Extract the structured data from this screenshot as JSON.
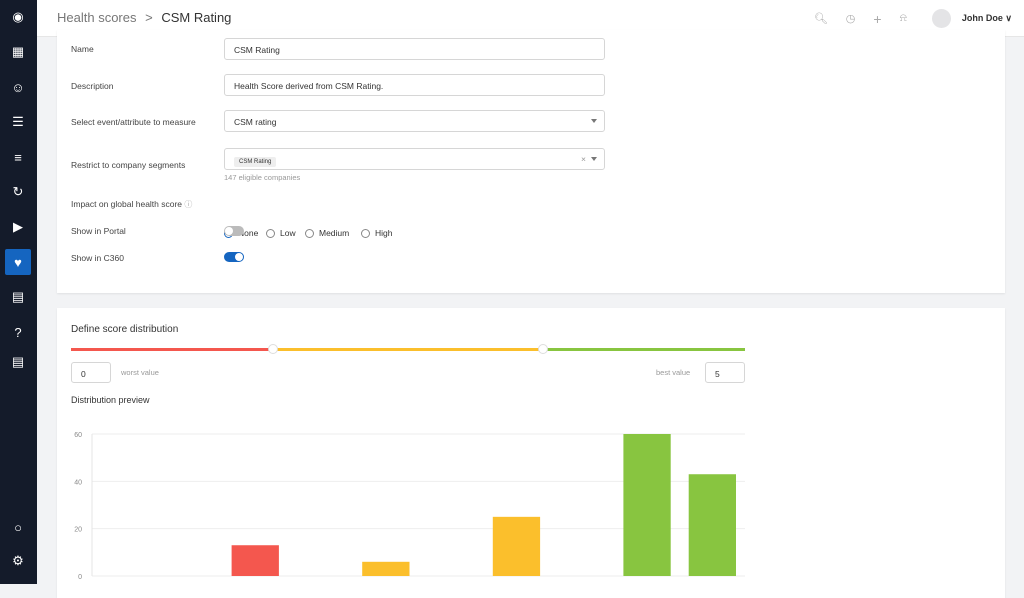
{
  "sidebar": {
    "items": [
      {
        "icon": "logo-icon"
      },
      {
        "icon": "dashboard-icon"
      },
      {
        "icon": "users-icon"
      },
      {
        "icon": "hierarchy-icon"
      },
      {
        "icon": "checklist-icon"
      },
      {
        "icon": "sync-icon"
      },
      {
        "icon": "play-icon"
      },
      {
        "icon": "health-icon",
        "active": true
      },
      {
        "icon": "calculator-icon"
      },
      {
        "icon": "help-icon"
      },
      {
        "icon": "feedback-icon"
      },
      {
        "icon": "lightbulb-icon"
      },
      {
        "icon": "gear-icon"
      }
    ]
  },
  "header": {
    "breadcrumb_parent": "Health scores",
    "breadcrumb_sep": ">",
    "breadcrumb_current": "CSM Rating",
    "user_name": "John Doe"
  },
  "form": {
    "name_label": "Name",
    "name_value": "CSM Rating",
    "description_label": "Description",
    "description_value": "Health Score derived from CSM Rating.",
    "measure_label": "Select event/attribute to measure",
    "measure_value": "CSM rating",
    "segments_label": "Restrict to company segments",
    "segments_tag": "CSM Rating",
    "segments_clear": "×",
    "segments_hint": "147 eligible companies",
    "impact_label": "Impact on global health score",
    "impact_options": [
      "None",
      "Low",
      "Medium",
      "High"
    ],
    "impact_selected": "None",
    "portal_label": "Show in Portal",
    "portal_on": false,
    "c360_label": "Show in C360",
    "c360_on": true
  },
  "distribution": {
    "title": "Define score distribution",
    "worst_label": "worst value",
    "worst_value": "0",
    "best_label": "best value",
    "best_value": "5",
    "thresholds": [
      1.5,
      3.5
    ],
    "colors": {
      "bad": "#f4574e",
      "mid": "#fbbf2c",
      "good": "#88c540"
    },
    "preview_title": "Distribution preview"
  },
  "chart_data": {
    "type": "bar",
    "x": [
      0.25,
      0.75,
      1.25,
      1.75,
      2.25,
      2.75,
      3.25,
      3.75,
      4.25,
      4.75
    ],
    "values": [
      0,
      0,
      13,
      0,
      6,
      0,
      25,
      0,
      60,
      43
    ],
    "ylim": [
      0,
      60
    ],
    "yticks": [
      "0",
      "20",
      "40",
      "60"
    ],
    "grid": true
  }
}
